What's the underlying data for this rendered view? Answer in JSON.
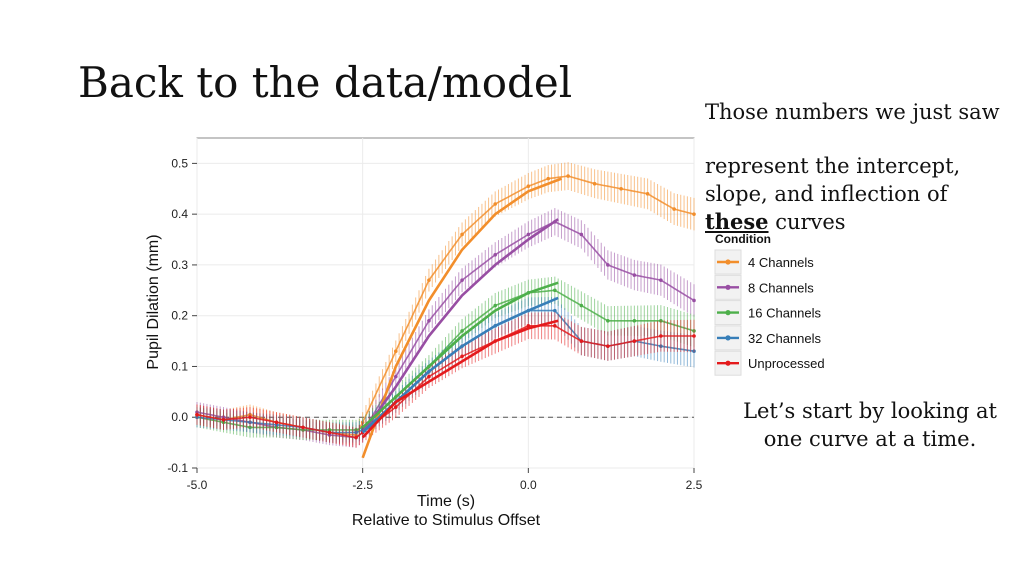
{
  "slide": {
    "title": "Back to the data/model",
    "note_top": {
      "line1": "Those numbers we just saw",
      "line2_a": "represent the intercept,",
      "line2_b": "slope, and inflection of",
      "emph": "these",
      "tail": " curves"
    },
    "note_bottom": {
      "line1": "Let’s start by looking at",
      "line2": "one curve at a time."
    }
  },
  "chart_data": {
    "type": "line",
    "xlabel": "Time (s)",
    "xlabel2": "Relative to Stimulus Offset",
    "ylabel": "Pupil Dilation (mm)",
    "xlim": [
      -5.0,
      2.5
    ],
    "ylim": [
      -0.1,
      0.55
    ],
    "xticks": [
      "-5.0",
      "-2.5",
      "0.0",
      "2.5"
    ],
    "yticks": [
      "-0.1",
      "0.0",
      "0.1",
      "0.2",
      "0.3",
      "0.4",
      "0.5"
    ],
    "grid": true,
    "reference_line_y": 0.0,
    "legend_title": "Condition",
    "legend_position": "right",
    "series": [
      {
        "name": "4 Channels",
        "color": "#f28e2b",
        "x": [
          -5.0,
          -4.6,
          -4.2,
          -3.8,
          -3.4,
          -3.0,
          -2.6,
          -2.5,
          -2.0,
          -1.5,
          -1.0,
          -0.5,
          0.0,
          0.3,
          0.6,
          1.0,
          1.4,
          1.8,
          2.2,
          2.5
        ],
        "y": [
          0.005,
          -0.005,
          0.005,
          -0.01,
          -0.02,
          -0.03,
          -0.035,
          -0.01,
          0.13,
          0.27,
          0.36,
          0.42,
          0.455,
          0.47,
          0.475,
          0.46,
          0.45,
          0.44,
          0.41,
          0.4
        ],
        "fit_x": [
          -2.5,
          -2.0,
          -1.5,
          -1.0,
          -0.5,
          0.0,
          0.5
        ],
        "fit_y": [
          -0.08,
          0.1,
          0.23,
          0.33,
          0.4,
          0.445,
          0.47
        ]
      },
      {
        "name": "8 Channels",
        "color": "#984ea3",
        "x": [
          -5.0,
          -4.6,
          -4.2,
          -3.8,
          -3.4,
          -3.0,
          -2.6,
          -2.5,
          -2.0,
          -1.5,
          -1.0,
          -0.5,
          0.0,
          0.4,
          0.8,
          1.2,
          1.6,
          2.0,
          2.5
        ],
        "y": [
          0.01,
          0.0,
          -0.01,
          -0.02,
          -0.025,
          -0.035,
          -0.04,
          -0.03,
          0.08,
          0.19,
          0.27,
          0.32,
          0.36,
          0.385,
          0.36,
          0.3,
          0.28,
          0.27,
          0.23
        ],
        "fit_x": [
          -2.5,
          -2.0,
          -1.5,
          -1.0,
          -0.5,
          0.0,
          0.45
        ],
        "fit_y": [
          -0.03,
          0.06,
          0.16,
          0.24,
          0.3,
          0.35,
          0.39
        ]
      },
      {
        "name": "16 Channels",
        "color": "#4daf4a",
        "x": [
          -5.0,
          -4.6,
          -4.2,
          -3.8,
          -3.4,
          -3.0,
          -2.6,
          -2.5,
          -2.0,
          -1.5,
          -1.0,
          -0.5,
          0.0,
          0.4,
          0.8,
          1.2,
          1.6,
          2.0,
          2.5
        ],
        "y": [
          0.0,
          -0.01,
          -0.02,
          -0.02,
          -0.025,
          -0.025,
          -0.025,
          -0.02,
          0.04,
          0.1,
          0.17,
          0.22,
          0.245,
          0.25,
          0.22,
          0.19,
          0.19,
          0.19,
          0.17
        ],
        "fit_x": [
          -2.5,
          -2.0,
          -1.5,
          -1.0,
          -0.5,
          0.0,
          0.45
        ],
        "fit_y": [
          -0.02,
          0.04,
          0.1,
          0.16,
          0.21,
          0.245,
          0.265
        ]
      },
      {
        "name": "32 Channels",
        "color": "#377eb8",
        "x": [
          -5.0,
          -4.6,
          -4.2,
          -3.8,
          -3.4,
          -3.0,
          -2.6,
          -2.5,
          -2.0,
          -1.5,
          -1.0,
          -0.5,
          0.0,
          0.4,
          0.8,
          1.2,
          1.6,
          2.0,
          2.5
        ],
        "y": [
          0.0,
          -0.005,
          -0.01,
          -0.015,
          -0.02,
          -0.03,
          -0.03,
          -0.025,
          0.03,
          0.09,
          0.14,
          0.18,
          0.21,
          0.21,
          0.15,
          0.14,
          0.15,
          0.14,
          0.13
        ],
        "fit_x": [
          -2.5,
          -2.0,
          -1.5,
          -1.0,
          -0.5,
          0.0,
          0.45
        ],
        "fit_y": [
          -0.03,
          0.03,
          0.09,
          0.14,
          0.18,
          0.21,
          0.235
        ]
      },
      {
        "name": "Unprocessed",
        "color": "#e41a1c",
        "x": [
          -5.0,
          -4.6,
          -4.2,
          -3.8,
          -3.4,
          -3.0,
          -2.6,
          -2.5,
          -2.0,
          -1.5,
          -1.0,
          -0.5,
          0.0,
          0.4,
          0.8,
          1.2,
          1.6,
          2.0,
          2.5
        ],
        "y": [
          0.005,
          -0.005,
          0.0,
          -0.01,
          -0.02,
          -0.03,
          -0.04,
          -0.03,
          0.02,
          0.08,
          0.12,
          0.15,
          0.18,
          0.18,
          0.15,
          0.14,
          0.15,
          0.16,
          0.16
        ],
        "fit_x": [
          -2.5,
          -2.0,
          -1.5,
          -1.0,
          -0.5,
          0.0,
          0.45
        ],
        "fit_y": [
          -0.04,
          0.03,
          0.07,
          0.11,
          0.15,
          0.175,
          0.19
        ]
      }
    ]
  }
}
